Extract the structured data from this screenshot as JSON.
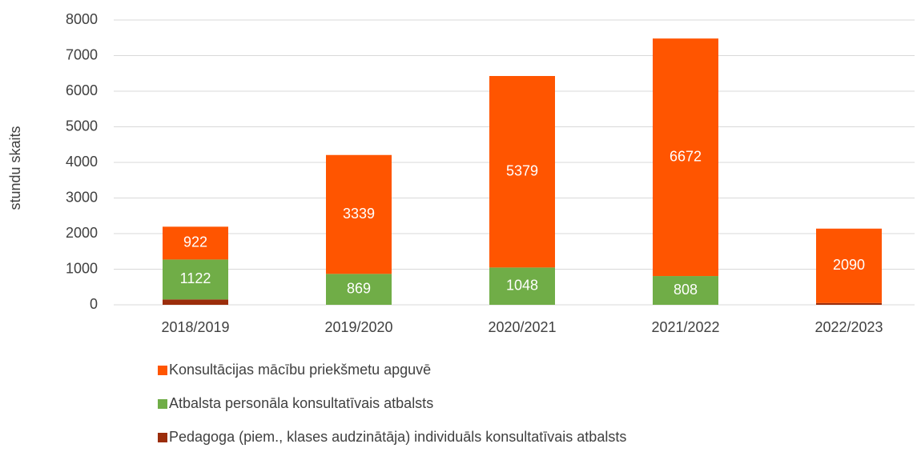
{
  "chart_data": {
    "type": "stacked_bar",
    "y_axis_label": "stundu skaits",
    "categories": [
      "2018/2019",
      "2019/2020",
      "2020/2021",
      "2021/2022",
      "2022/2023"
    ],
    "series": [
      {
        "name": "Pedagoga (piem., klases audzinātāja) individuāls konsultatīvais atbalsts",
        "color": "#9b2d0b",
        "values": [
          150,
          0,
          0,
          0,
          50
        ],
        "data_labels": false
      },
      {
        "name": "Atbalsta personāla konsultatīvais atbalsts",
        "color": "#70ad47",
        "values": [
          1122,
          869,
          1048,
          808,
          0
        ],
        "data_labels": true
      },
      {
        "name": "Konsultācijas mācību priekšmetu apguvē",
        "color": "#ff5500",
        "values": [
          922,
          3339,
          5379,
          6672,
          2090
        ],
        "data_labels": true
      }
    ],
    "ylim": [
      0,
      8000
    ],
    "yticks": [
      0,
      1000,
      2000,
      3000,
      4000,
      5000,
      6000,
      7000,
      8000
    ],
    "grid": true,
    "legend": "bottom"
  }
}
